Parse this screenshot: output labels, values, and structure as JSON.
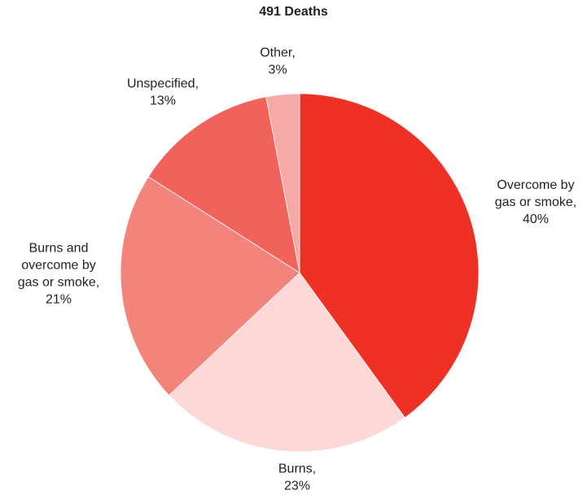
{
  "chart_data": {
    "type": "pie",
    "title": "491 Deaths",
    "start_angle_deg": 0,
    "direction": "clockwise",
    "slices": [
      {
        "label_lines": [
          "Overcome by",
          "gas or smoke,",
          "40%"
        ],
        "label": "Overcome by gas or smoke",
        "value": 40,
        "color": "#ee3124"
      },
      {
        "label_lines": [
          "Burns,",
          "23%"
        ],
        "label": "Burns",
        "value": 23,
        "color": "#fcd9d6"
      },
      {
        "label_lines": [
          "Burns and",
          "overcome by",
          "gas or smoke,",
          "21%"
        ],
        "label": "Burns and overcome by gas or smoke",
        "value": 21,
        "color": "#f2847b"
      },
      {
        "label_lines": [
          "Unspecified,",
          "13%"
        ],
        "label": "Unspecified",
        "value": 13,
        "color": "#f0625a"
      },
      {
        "label_lines": [
          "Other,",
          "3%"
        ],
        "label": "Other",
        "value": 3,
        "color": "#f7a9a6"
      }
    ]
  }
}
